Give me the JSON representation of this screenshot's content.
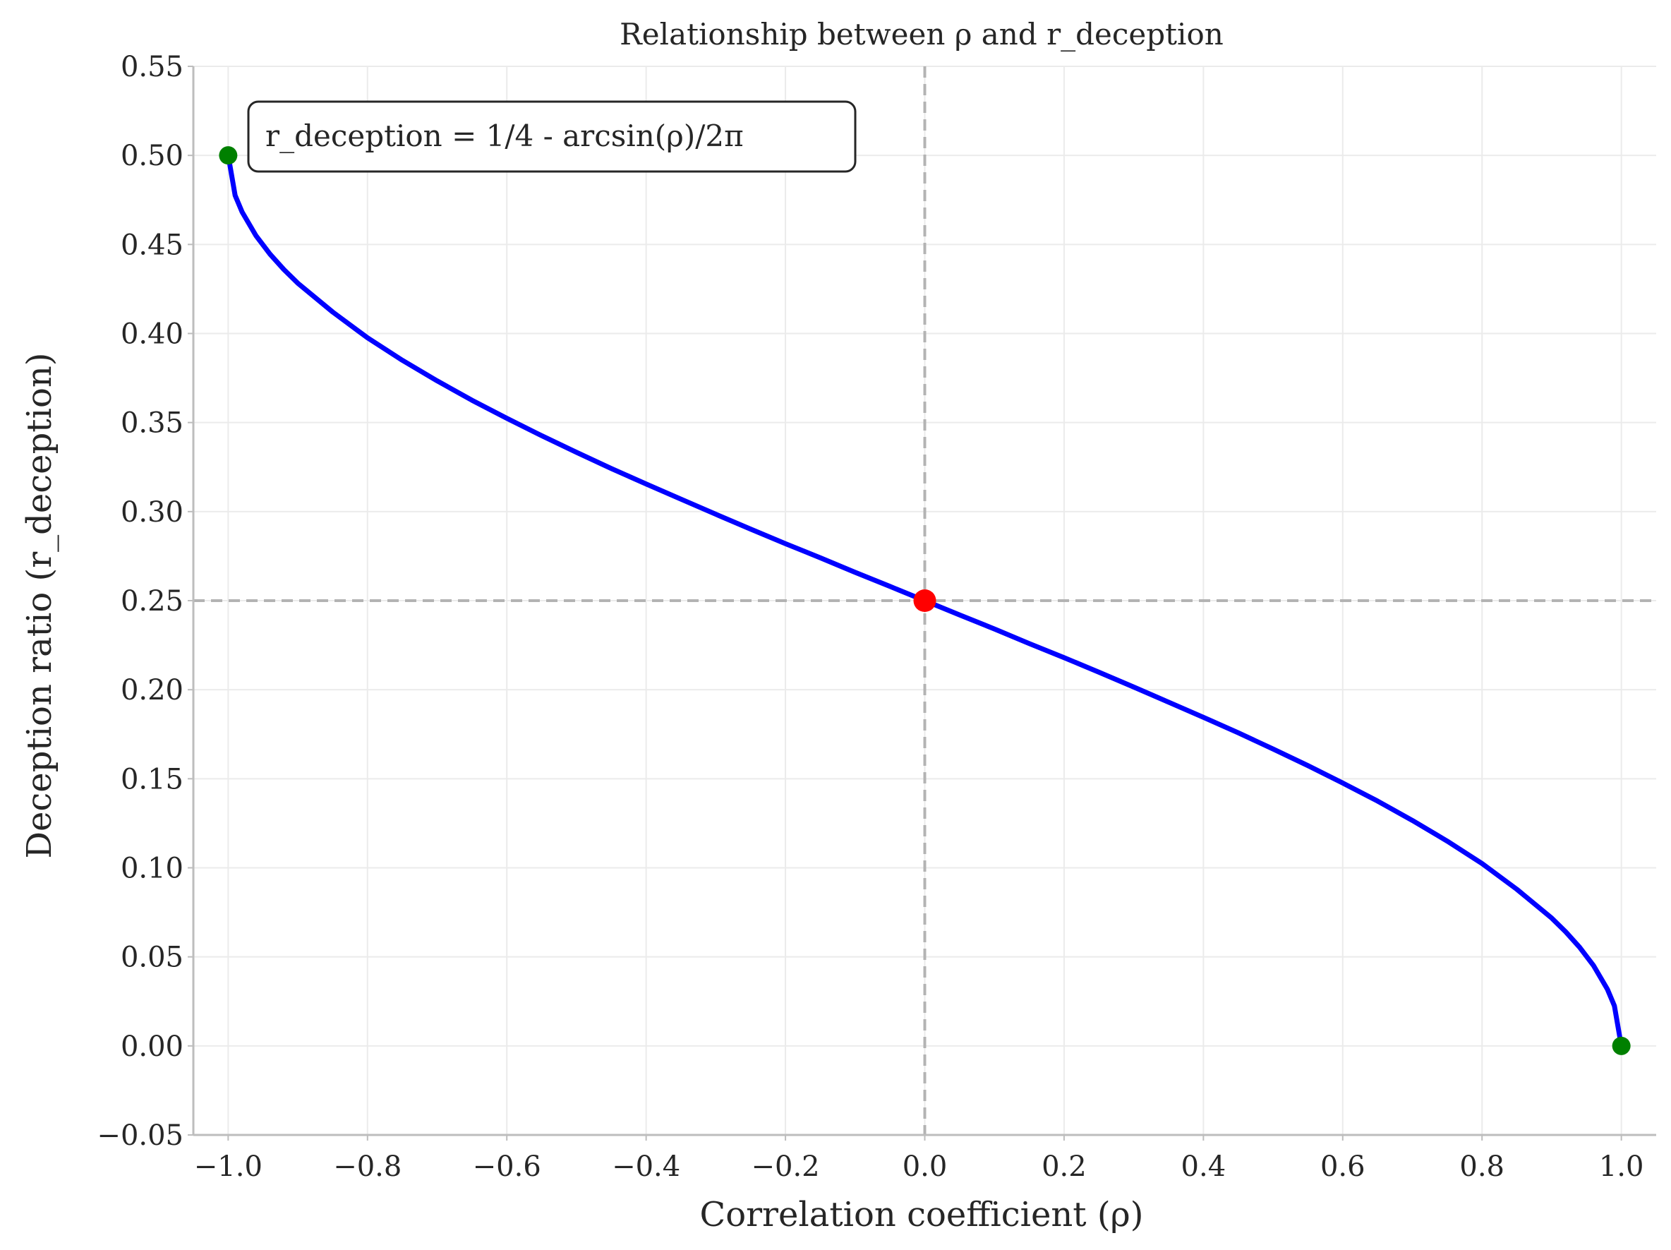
{
  "chart_data": {
    "type": "line",
    "title": "Relationship between ρ and r_deception",
    "xlabel": "Correlation coefficient (ρ)",
    "ylabel": "Deception ratio (r_deception)",
    "xlim": [
      -1.05,
      1.05
    ],
    "ylim": [
      -0.05,
      0.55
    ],
    "x_ticks": [
      -1.0,
      -0.8,
      -0.6,
      -0.4,
      -0.2,
      0.0,
      0.2,
      0.4,
      0.6,
      0.8,
      1.0
    ],
    "x_tick_labels": [
      "−1.0",
      "−0.8",
      "−0.6",
      "−0.4",
      "−0.2",
      "0.0",
      "0.2",
      "0.4",
      "0.6",
      "0.8",
      "1.0"
    ],
    "y_ticks": [
      -0.05,
      0.0,
      0.05,
      0.1,
      0.15,
      0.2,
      0.25,
      0.3,
      0.35,
      0.4,
      0.45,
      0.5,
      0.55
    ],
    "y_tick_labels": [
      "−0.05",
      "0.00",
      "0.05",
      "0.10",
      "0.15",
      "0.20",
      "0.25",
      "0.30",
      "0.35",
      "0.40",
      "0.45",
      "0.50",
      "0.55"
    ],
    "grid": true,
    "annotation": "r_deception = 1/4 - arcsin(ρ)/2π",
    "series": [
      {
        "color": "#0000ff",
        "x": [
          -1.0,
          -0.99,
          -0.98,
          -0.96,
          -0.94,
          -0.92,
          -0.9,
          -0.85,
          -0.8,
          -0.75,
          -0.7,
          -0.65,
          -0.6,
          -0.55,
          -0.5,
          -0.45,
          -0.4,
          -0.35,
          -0.3,
          -0.25,
          -0.2,
          -0.15,
          -0.1,
          -0.05,
          0.0,
          0.05,
          0.1,
          0.15,
          0.2,
          0.25,
          0.3,
          0.35,
          0.4,
          0.45,
          0.5,
          0.55,
          0.6,
          0.65,
          0.7,
          0.75,
          0.8,
          0.85,
          0.9,
          0.92,
          0.94,
          0.96,
          0.98,
          0.99,
          1.0
        ],
        "y": [
          0.5,
          0.4775,
          0.4682,
          0.4549,
          0.4446,
          0.4359,
          0.4282,
          0.4121,
          0.3976,
          0.385,
          0.3734,
          0.3625,
          0.3524,
          0.3426,
          0.3333,
          0.3242,
          0.3155,
          0.307,
          0.2985,
          0.2902,
          0.282,
          0.2741,
          0.2659,
          0.258,
          0.25,
          0.242,
          0.2341,
          0.2259,
          0.218,
          0.2098,
          0.2015,
          0.193,
          0.1845,
          0.1758,
          0.1667,
          0.1574,
          0.1476,
          0.1375,
          0.1266,
          0.115,
          0.1024,
          0.0879,
          0.0718,
          0.0641,
          0.0554,
          0.0451,
          0.0318,
          0.0225,
          0.0
        ]
      }
    ],
    "markers": [
      {
        "x": -1.0,
        "y": 0.5,
        "color": "#008000"
      },
      {
        "x": 1.0,
        "y": 0.0,
        "color": "#008000"
      },
      {
        "x": 0.0,
        "y": 0.25,
        "color": "#ff0000"
      }
    ],
    "reference_lines": {
      "x": 0.0,
      "y": 0.25,
      "color": "#b3b3b3"
    }
  }
}
